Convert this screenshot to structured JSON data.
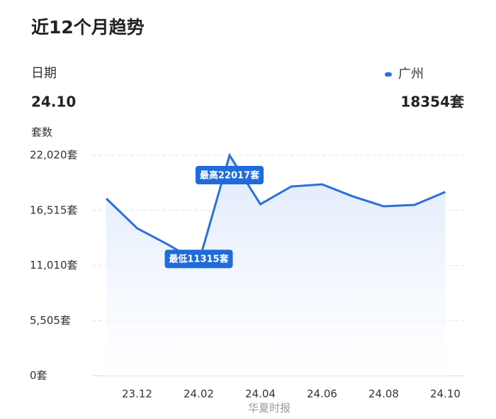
{
  "chart_data": {
    "type": "line",
    "title": "近12个月趋势",
    "date_caption": "日期",
    "selected_date": "24.10",
    "selected_value": "18354套",
    "y_label": "套数",
    "categories": [
      null,
      "23.12",
      null,
      "24.02",
      null,
      "24.04",
      null,
      "24.06",
      null,
      "24.08",
      null,
      "24.10"
    ],
    "series": [
      {
        "name": "广州",
        "color": "#2a6fdb",
        "values": [
          17700,
          14730,
          13100,
          11315,
          22017,
          17130,
          18900,
          19120,
          17910,
          16920,
          17060,
          18354
        ]
      }
    ],
    "ylim": [
      0,
      22020
    ],
    "yticks": [
      {
        "value": 0,
        "label": "0套"
      },
      {
        "value": 5505,
        "label": "5,505套"
      },
      {
        "value": 11010,
        "label": "11,010套"
      },
      {
        "value": 16515,
        "label": "16,515套"
      },
      {
        "value": 22020,
        "label": "22,020套"
      }
    ],
    "grid": true,
    "annotations": [
      "最高22017套",
      "最低11315套"
    ],
    "watermark": "华夏时报"
  }
}
